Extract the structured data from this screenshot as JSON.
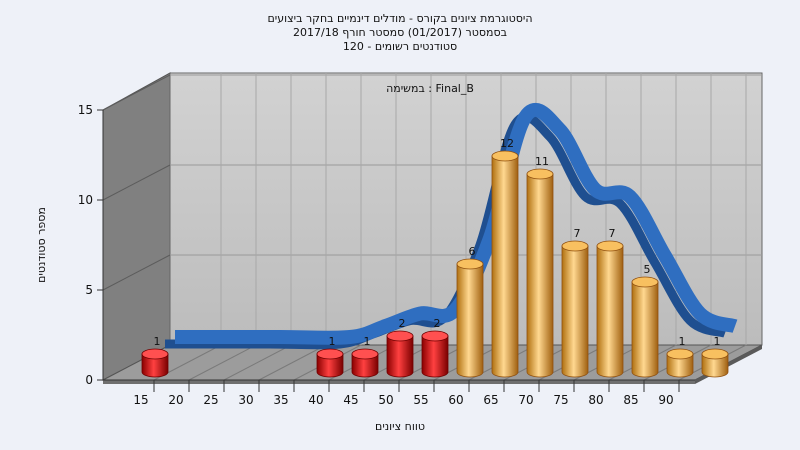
{
  "chart_data": {
    "type": "bar",
    "title_lines": [
      "היסטוגרמת ציונים בקורס - מודלים דינמיים בחקר ביצועים",
      "בסמסטר  (01/2017)  סמסטר חורף  2017/18",
      "סטודנטים רשומים - 120"
    ],
    "annotation": "במשימה : Final_B",
    "xlabel": "טווח ציונים",
    "ylabel": "מספר סטודנטים",
    "x_ticks": [
      "15",
      "20",
      "25",
      "30",
      "35",
      "40",
      "45",
      "50",
      "55",
      "60",
      "65",
      "70",
      "75",
      "80",
      "85",
      "90"
    ],
    "y_ticks": [
      "0",
      "5",
      "10",
      "15"
    ],
    "ylim": [
      0,
      15
    ],
    "grid": true,
    "bars": [
      {
        "x": 15,
        "value": 1,
        "label": "1",
        "group": "fail"
      },
      {
        "x": 40,
        "value": 1,
        "label": "1",
        "group": "fail"
      },
      {
        "x": 45,
        "value": 1,
        "label": "1",
        "group": "fail"
      },
      {
        "x": 50,
        "value": 2,
        "label": "2",
        "group": "fail"
      },
      {
        "x": 55,
        "value": 2,
        "label": "2",
        "group": "fail"
      },
      {
        "x": 60,
        "value": 6,
        "label": "6",
        "group": "pass"
      },
      {
        "x": 65,
        "value": 12,
        "label": "12",
        "group": "pass"
      },
      {
        "x": 70,
        "value": 11,
        "label": "11",
        "group": "pass"
      },
      {
        "x": 75,
        "value": 7,
        "label": "7",
        "group": "pass"
      },
      {
        "x": 80,
        "value": 7,
        "label": "7",
        "group": "pass"
      },
      {
        "x": 85,
        "value": 5,
        "label": "5",
        "group": "pass"
      },
      {
        "x": 90,
        "value": 1,
        "label": "1",
        "group": "pass"
      },
      {
        "x": 95,
        "value": 1,
        "label": "1",
        "group": "pass"
      }
    ],
    "curve": [
      {
        "x": 15,
        "y": 0
      },
      {
        "x": 20,
        "y": 0
      },
      {
        "x": 30,
        "y": 0
      },
      {
        "x": 40,
        "y": 0
      },
      {
        "x": 45,
        "y": 0.6
      },
      {
        "x": 50,
        "y": 1.3
      },
      {
        "x": 55,
        "y": 1.5
      },
      {
        "x": 60,
        "y": 5.5
      },
      {
        "x": 65,
        "y": 12.2
      },
      {
        "x": 70,
        "y": 11.5
      },
      {
        "x": 75,
        "y": 8.2
      },
      {
        "x": 80,
        "y": 7.8
      },
      {
        "x": 85,
        "y": 4.5
      },
      {
        "x": 90,
        "y": 1.3
      },
      {
        "x": 95,
        "y": 0.6
      }
    ],
    "colors": {
      "fail": "#e01010",
      "pass": "#f0b040",
      "curve": "#2f6ec0",
      "back_wall": "#c6c6c6",
      "side_wall": "#7f7f7f",
      "floor": "#9a9a9a"
    }
  }
}
